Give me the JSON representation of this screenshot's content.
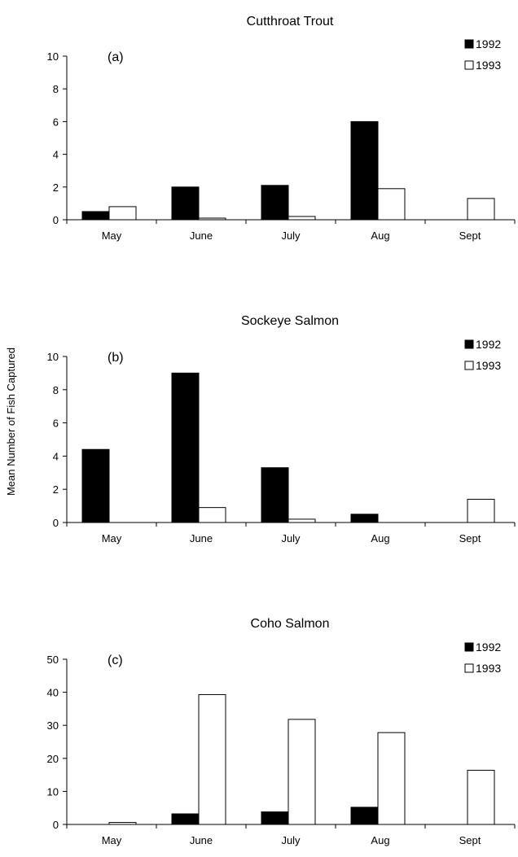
{
  "ylabel": "Mean Number of Fish Captured",
  "series_colors": {
    "1992": "#000000",
    "1993": "#ffffff"
  },
  "chart_data": [
    {
      "type": "bar",
      "title": "Cutthroat Trout",
      "panel_label": "(a)",
      "categories": [
        "May",
        "June",
        "July",
        "Aug",
        "Sept"
      ],
      "ylim": [
        0,
        10
      ],
      "yticks": [
        0,
        2,
        4,
        6,
        8,
        10
      ],
      "legend": {
        "position": "top-right",
        "entries": [
          "1992",
          "1993"
        ]
      },
      "series": [
        {
          "name": "1992",
          "values": [
            0.5,
            2.0,
            2.1,
            6.0,
            0
          ]
        },
        {
          "name": "1993",
          "values": [
            0.8,
            0.1,
            0.2,
            1.9,
            1.3
          ]
        }
      ]
    },
    {
      "type": "bar",
      "title": "Sockeye Salmon",
      "panel_label": "(b)",
      "categories": [
        "May",
        "June",
        "July",
        "Aug",
        "Sept"
      ],
      "ylim": [
        0,
        10
      ],
      "yticks": [
        0,
        2,
        4,
        6,
        8,
        10
      ],
      "legend": {
        "position": "top-right",
        "entries": [
          "1992",
          "1993"
        ]
      },
      "series": [
        {
          "name": "1992",
          "values": [
            4.4,
            9.0,
            3.3,
            0.5,
            0
          ]
        },
        {
          "name": "1993",
          "values": [
            0,
            0.9,
            0.2,
            0,
            1.4
          ]
        }
      ]
    },
    {
      "type": "bar",
      "title": "Coho Salmon",
      "panel_label": "(c)",
      "categories": [
        "May",
        "June",
        "July",
        "Aug",
        "Sept"
      ],
      "ylim": [
        0,
        50
      ],
      "yticks": [
        0,
        10,
        20,
        30,
        40,
        50
      ],
      "legend": {
        "position": "top-right",
        "entries": [
          "1992",
          "1993"
        ]
      },
      "series": [
        {
          "name": "1992",
          "values": [
            0,
            3.2,
            3.8,
            5.2,
            0
          ]
        },
        {
          "name": "1993",
          "values": [
            0.6,
            39.3,
            31.8,
            27.8,
            16.4
          ]
        }
      ]
    }
  ]
}
